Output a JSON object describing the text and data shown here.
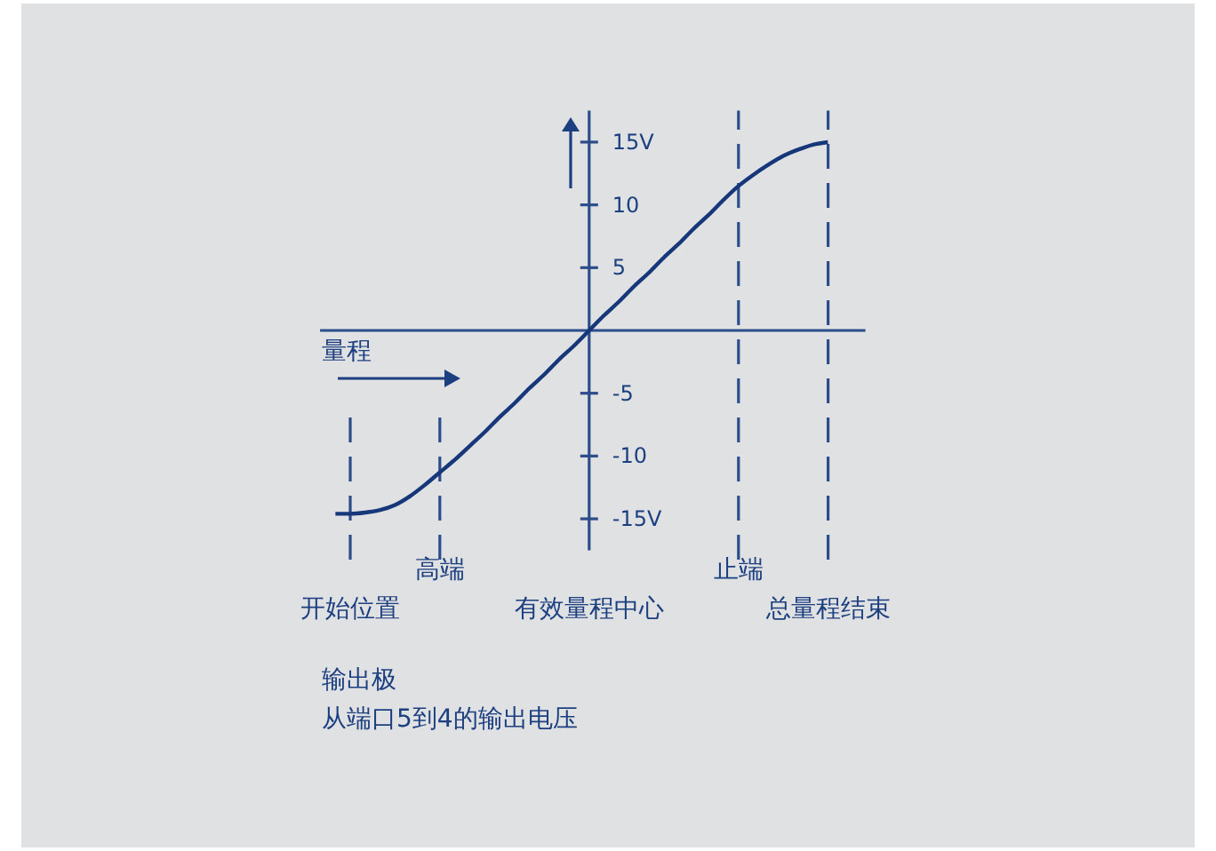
{
  "chart_data": {
    "type": "line",
    "categories": [
      null,
      "开始位置",
      null,
      null,
      null,
      null,
      null,
      "高端",
      null,
      null,
      null,
      null,
      null,
      null,
      null,
      null,
      null,
      "有效量程中心",
      null,
      null,
      null,
      null,
      null,
      null,
      null,
      null,
      null,
      "止端",
      null,
      null,
      null,
      null,
      null,
      "总量程结束"
    ],
    "values": [
      -14.6,
      -14.6,
      -14.5,
      -14.3,
      -13.9,
      -13.2,
      -12.3,
      -11.3,
      -10.3,
      -9.2,
      -8.1,
      -6.9,
      -5.8,
      -4.6,
      -3.5,
      -2.3,
      -1.2,
      0,
      1.2,
      2.3,
      3.5,
      4.6,
      5.8,
      6.9,
      8.1,
      9.2,
      10.4,
      11.5,
      12.4,
      13.2,
      13.9,
      14.4,
      14.8,
      15.0
    ],
    "color": "#16377a",
    "ylim": [
      -17.5,
      17.5
    ],
    "yticks": [
      {
        "value": 15,
        "label": "15V"
      },
      10,
      5,
      -5,
      -10,
      {
        "value": -15,
        "label": "-15V"
      }
    ],
    "ref_lines": [
      {
        "axis": "y",
        "value": 0,
        "color": "#2c4c8a"
      },
      {
        "axis": "x",
        "value": "开始位置",
        "color": "#2c4c8a",
        "line_style": "dashed"
      },
      {
        "axis": "x",
        "value": "高端",
        "color": "#2c4c8a",
        "line_style": "dashed"
      },
      {
        "axis": "x",
        "value": "止端",
        "color": "#2c4c8a",
        "line_style": "dashed"
      },
      {
        "axis": "x",
        "value": "总量程结束",
        "color": "#2c4c8a",
        "line_style": "dashed"
      }
    ],
    "marker": "none",
    "annotations": [
      "量程",
      "输出极",
      "从端口5到4的输出电压"
    ]
  }
}
